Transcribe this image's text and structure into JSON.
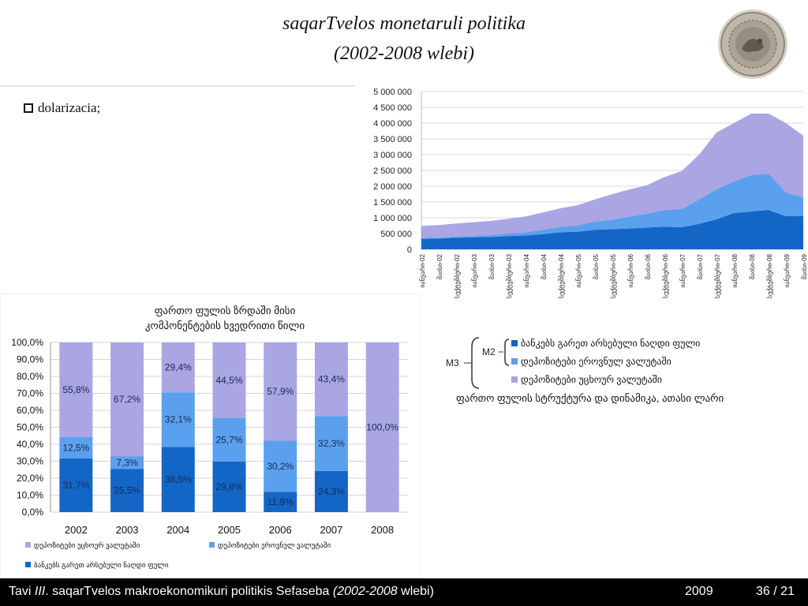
{
  "slide": {
    "title_line1": "saqarTvelos monetaruli politika",
    "title_line2": "(2002-2008 wlebi)",
    "bullet": "dolarizacia;",
    "seal_icon": "national-bank-seal-icon"
  },
  "footer": {
    "title_prefix": "Tavi ",
    "title_roman": "III",
    "title_rest": ". saqarTvelos makroekonomikuri politikis Sefaseba ",
    "title_years": "(2002-2008",
    "title_end": " wlebi)",
    "year": "2009",
    "page": "36 / 21"
  },
  "colors": {
    "dark_blue": "#1466c6",
    "mid_blue": "#5aa0ee",
    "lavender": "#a9a6e3"
  },
  "chart_data": [
    {
      "type": "area",
      "stacked": true,
      "title": "",
      "xlabel": "",
      "ylabel": "",
      "ylim": [
        0,
        5000000
      ],
      "grid": true,
      "y_ticks": [
        "0",
        "500 000",
        "1 000 000",
        "1 500 000",
        "2 000 000",
        "2 500 000",
        "3 000 000",
        "3 500 000",
        "4 000 000",
        "4 500 000",
        "5 000 000"
      ],
      "x_labels": [
        "იანვარი-02",
        "მაისი-02",
        "სექტემბერი-02",
        "იანვარი-03",
        "მაისი-03",
        "სექტემბერი-03",
        "იანვარი-04",
        "მაისი-04",
        "სექტემბერი-04",
        "იანვარი-05",
        "მაისი-05",
        "სექტემბერი-05",
        "იანვარი-06",
        "მაისი-06",
        "სექტემბერი-06",
        "იანვარი-07",
        "მაისი-07",
        "სექტემბერი-07",
        "იანვარი-08",
        "მაისი-08",
        "სექტემბერი-08",
        "იანვარი-09",
        "მაისი-09"
      ],
      "series": [
        {
          "name": "ბანკებს გარეთ არსებული ნაღდი ფული",
          "color": "#1466c6",
          "values": [
            330000,
            340000,
            370000,
            380000,
            390000,
            420000,
            440000,
            480000,
            540000,
            560000,
            620000,
            640000,
            660000,
            690000,
            720000,
            700000,
            810000,
            950000,
            1150000,
            1200000,
            1250000,
            1050000,
            1050000
          ]
        },
        {
          "name": "დეპოზიტები ეროვნულ ვალუტაში",
          "color": "#5aa0ee",
          "values": [
            30000,
            30000,
            40000,
            50000,
            60000,
            80000,
            100000,
            140000,
            170000,
            200000,
            260000,
            300000,
            380000,
            440000,
            520000,
            580000,
            770000,
            950000,
            1000000,
            1150000,
            1150000,
            750000,
            600000
          ]
        },
        {
          "name": "დეპოზიტები უცხოურ ვალუტაში",
          "color": "#a9a6e3",
          "values": [
            380000,
            400000,
            410000,
            430000,
            450000,
            470000,
            500000,
            550000,
            590000,
            640000,
            700000,
            810000,
            860000,
            900000,
            1050000,
            1200000,
            1420000,
            1800000,
            1850000,
            1950000,
            1900000,
            2200000,
            1950000
          ]
        }
      ]
    },
    {
      "type": "bar",
      "stacked": true,
      "title": "ფართო ფულის ზრდაში მისი კომპონენტების ხვედრითი წილი",
      "xlabel": "",
      "ylabel": "",
      "ylim": [
        0,
        100
      ],
      "grid": true,
      "y_ticks": [
        "0,0%",
        "10,0%",
        "20,0%",
        "30,0%",
        "40,0%",
        "50,0%",
        "60,0%",
        "70,0%",
        "80,0%",
        "90,0%",
        "100,0%"
      ],
      "categories": [
        "2002",
        "2003",
        "2004",
        "2005",
        "2006",
        "2007",
        "2008"
      ],
      "series": [
        {
          "name": "ბანკებს გარეთ არსებული ნაღდი ფული",
          "color": "#1466c6",
          "values": [
            31.7,
            25.5,
            38.5,
            29.8,
            11.9,
            24.3,
            0
          ],
          "labels": [
            "31,7%",
            "25,5%",
            "38,5%",
            "29,8%",
            "11,9%",
            "24,3%",
            ""
          ]
        },
        {
          "name": "დეპოზიტები ეროვნულ ვალუტაში",
          "color": "#5aa0ee",
          "values": [
            12.5,
            7.3,
            32.1,
            25.7,
            30.2,
            32.3,
            0
          ],
          "labels": [
            "12,5%",
            "7,3%",
            "32,1%",
            "25,7%",
            "30,2%",
            "32,3%",
            ""
          ]
        },
        {
          "name": "დეპოზიტები უცხოურ ვალუტაში",
          "color": "#a9a6e3",
          "values": [
            55.8,
            67.2,
            29.4,
            44.5,
            57.9,
            43.4,
            100
          ],
          "labels": [
            "55,8%",
            "67,2%",
            "29,4%",
            "44,5%",
            "57,9%",
            "43,4%",
            "100,0%"
          ]
        }
      ],
      "legend": [
        {
          "text": "დეპოზიტები უცხოურ ვალუტაში",
          "color": "#a9a6e3"
        },
        {
          "text": "დეპოზიტები ეროვნულ ვალუტაში",
          "color": "#5aa0ee"
        },
        {
          "text": "ბანკებს გარეთ არსებული ნაღდი ფული",
          "color": "#1466c6"
        }
      ]
    }
  ],
  "structure_legend": {
    "m3": "M3",
    "m2": "M2",
    "items": [
      {
        "text": "ბანკებს გარეთ არსებული ნაღდი ფული",
        "color": "#1466c6"
      },
      {
        "text": "დეპოზიტები ეროვნულ ვალუტაში",
        "color": "#5aa0ee"
      },
      {
        "text": "დეპოზიტები უცხოურ ვალუტაში",
        "color": "#a9a6e3"
      }
    ],
    "caption": "ფართო ფულის სტრუქტურა და დინამიკა, ათასი ლარი"
  }
}
